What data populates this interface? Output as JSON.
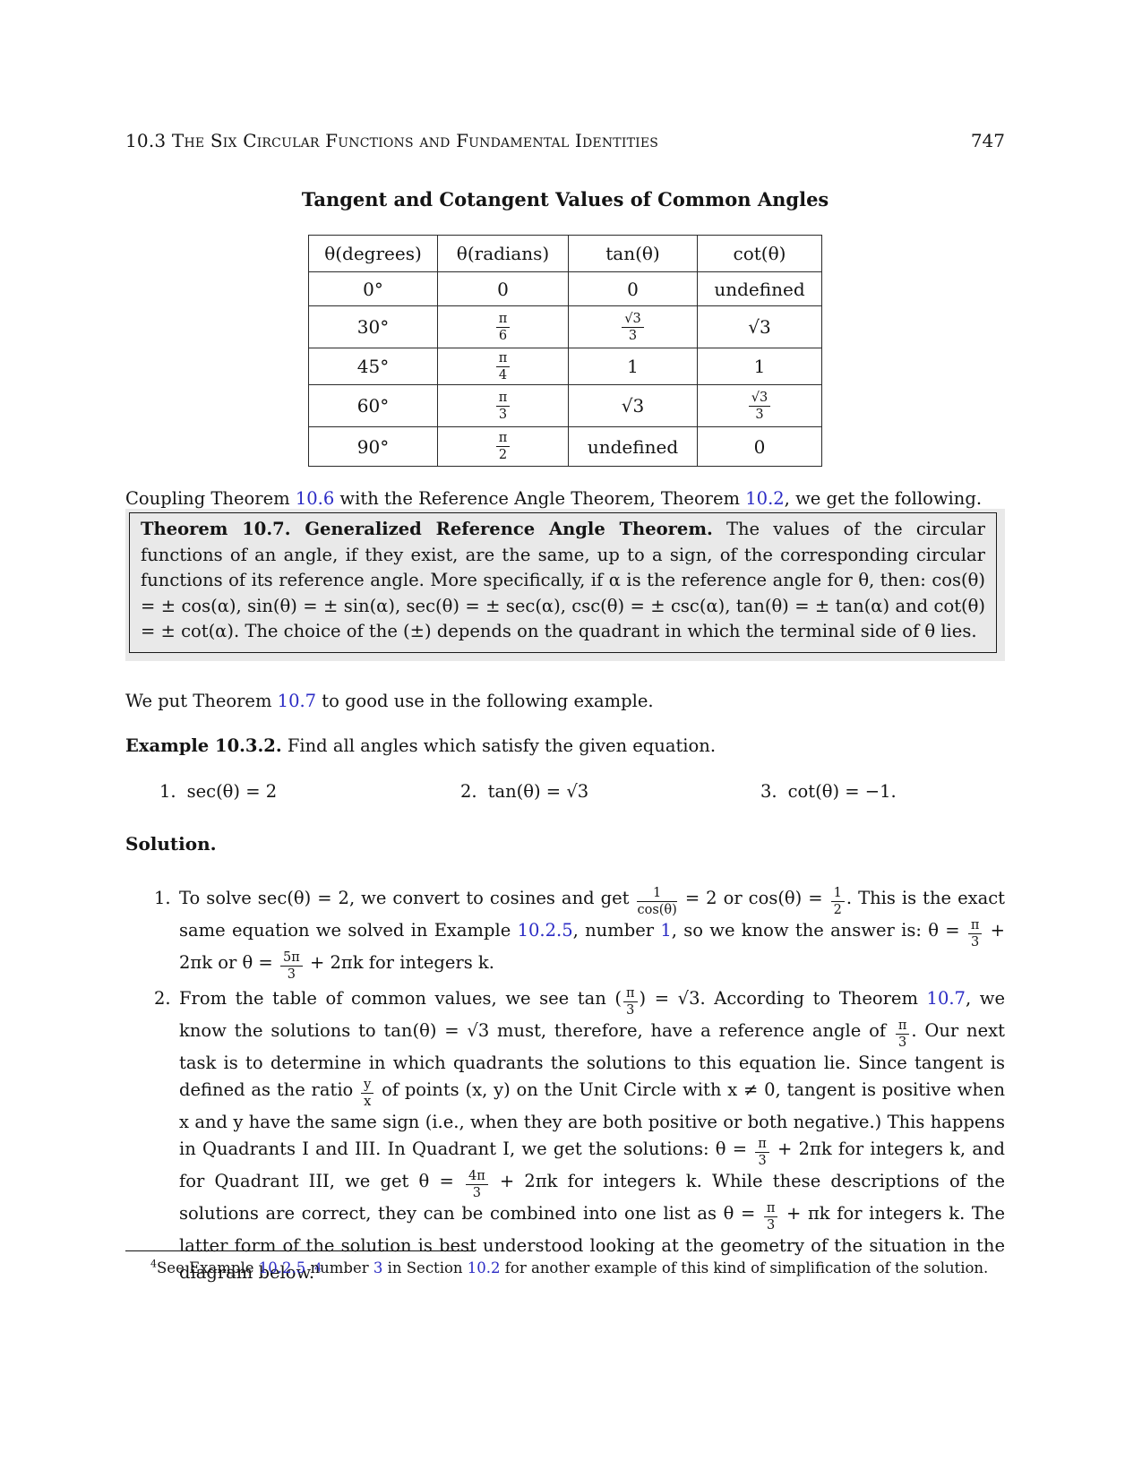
{
  "header": {
    "section_number": "10.3",
    "section_title": "The Six Circular Functions and Fundamental Identities",
    "page_number": "747"
  },
  "table_title": "Tangent and Cotangent Values of Common Angles",
  "table": {
    "headers": [
      "θ(degrees)",
      "θ(radians)",
      "tan(θ)",
      "cot(θ)"
    ],
    "rows": [
      [
        [
          {
            "text": "0°"
          }
        ],
        [
          {
            "text": "0"
          }
        ],
        [
          {
            "text": "0"
          }
        ],
        [
          {
            "text": "undefined"
          }
        ]
      ],
      [
        [
          {
            "text": "30°"
          }
        ],
        [
          {
            "frac": {
              "num": "π",
              "den": "6"
            }
          }
        ],
        [
          {
            "frac": {
              "num": "√3",
              "den": "3"
            }
          }
        ],
        [
          {
            "text": "√3"
          }
        ]
      ],
      [
        [
          {
            "text": "45°"
          }
        ],
        [
          {
            "frac": {
              "num": "π",
              "den": "4"
            }
          }
        ],
        [
          {
            "text": "1"
          }
        ],
        [
          {
            "text": "1"
          }
        ]
      ],
      [
        [
          {
            "text": "60°"
          }
        ],
        [
          {
            "frac": {
              "num": "π",
              "den": "3"
            }
          }
        ],
        [
          {
            "text": "√3"
          }
        ],
        [
          {
            "frac": {
              "num": "√3",
              "den": "3"
            }
          }
        ]
      ],
      [
        [
          {
            "text": "90°"
          }
        ],
        [
          {
            "frac": {
              "num": "π",
              "den": "2"
            }
          }
        ],
        [
          {
            "text": "undefined"
          }
        ],
        [
          {
            "text": "0"
          }
        ]
      ]
    ]
  },
  "coupling_paragraph": [
    {
      "text": "Coupling Theorem "
    },
    {
      "text": "10.6",
      "link": true
    },
    {
      "text": " with the Reference Angle Theorem, Theorem "
    },
    {
      "text": "10.2",
      "link": true
    },
    {
      "text": ", we get the following."
    }
  ],
  "theorem": [
    {
      "text": "Theorem 10.7. Generalized Reference Angle Theorem.",
      "bold": true
    },
    {
      "text": "  The values of the circular functions of an angle, if they exist, are the same, up to a sign, of the corresponding circular functions of its reference angle. More specifically, if α is the reference angle for θ, then: cos(θ) = ± cos(α), sin(θ) = ± sin(α), sec(θ) = ± sec(α), csc(θ) = ± csc(α), tan(θ) = ± tan(α) and cot(θ) = ± cot(α). The choice of the (±) depends on the quadrant in which the terminal side of θ lies."
    }
  ],
  "we_put_paragraph": [
    {
      "text": "We put Theorem "
    },
    {
      "text": "10.7",
      "link": true
    },
    {
      "text": " to good use in the following example."
    }
  ],
  "example_paragraph": [
    {
      "text": "Example 10.3.2.",
      "bold": true
    },
    {
      "text": " Find all angles which satisfy the given equation."
    }
  ],
  "equations": [
    {
      "label": "1.",
      "expr": "sec(θ) = 2"
    },
    {
      "label": "2.",
      "expr": "tan(θ) = √3"
    },
    {
      "label": "3.",
      "expr": "cot(θ) = −1."
    }
  ],
  "solution_label": "Solution.",
  "solution_items": [
    {
      "number": "1.",
      "segments": [
        {
          "text": "To solve sec(θ) = 2, we convert to cosines and get "
        },
        {
          "frac": {
            "num": "1",
            "den": "cos(θ)"
          }
        },
        {
          "text": " = 2 or cos(θ) = "
        },
        {
          "frac": {
            "num": "1",
            "den": "2"
          }
        },
        {
          "text": ". This is the exact same equation we solved in Example "
        },
        {
          "text": "10.2.5",
          "link": true
        },
        {
          "text": ", number "
        },
        {
          "text": "1",
          "link": true
        },
        {
          "text": ", so we know the answer is: θ = "
        },
        {
          "frac": {
            "num": "π",
            "den": "3"
          }
        },
        {
          "text": " + 2πk or θ = "
        },
        {
          "frac": {
            "num": "5π",
            "den": "3"
          }
        },
        {
          "text": " + 2πk for integers k."
        }
      ]
    },
    {
      "number": "2.",
      "segments": [
        {
          "text": "From the table of common values, we see tan ("
        },
        {
          "frac": {
            "num": "π",
            "den": "3"
          }
        },
        {
          "text": ") = √3. According to Theorem "
        },
        {
          "text": "10.7",
          "link": true
        },
        {
          "text": ", we know the solutions to tan(θ) = √3 must, therefore, have a reference angle of "
        },
        {
          "frac": {
            "num": "π",
            "den": "3"
          }
        },
        {
          "text": ". Our next task is to determine in which quadrants the solutions to this equation lie. Since tangent is defined as the ratio "
        },
        {
          "frac": {
            "num": "y",
            "den": "x"
          }
        },
        {
          "text": " of points (x, y) on the Unit Circle with x ≠ 0, tangent is positive when x and y have the same sign (i.e., when they are both positive or both negative.) This happens in Quadrants I and III. In Quadrant I, we get the solutions: θ = "
        },
        {
          "frac": {
            "num": "π",
            "den": "3"
          }
        },
        {
          "text": " + 2πk for integers k, and for Quadrant III, we get θ = "
        },
        {
          "frac": {
            "num": "4π",
            "den": "3"
          }
        },
        {
          "text": " + 2πk for integers k. While these descriptions of the solutions are correct, they can be combined into one list as θ = "
        },
        {
          "frac": {
            "num": "π",
            "den": "3"
          }
        },
        {
          "text": " + πk for integers k. The latter form of the solution is best understood looking at the geometry of the situation in the diagram below."
        },
        {
          "text": "4",
          "link": true,
          "sup": true
        }
      ]
    }
  ],
  "footnote": [
    {
      "text": "4",
      "sup": true
    },
    {
      "text": "See Example "
    },
    {
      "text": "10.2.5",
      "link": true
    },
    {
      "text": " number "
    },
    {
      "text": "3",
      "link": true
    },
    {
      "text": " in Section "
    },
    {
      "text": "10.2",
      "link": true
    },
    {
      "text": " for another example of this kind of simplification of the solution."
    }
  ]
}
